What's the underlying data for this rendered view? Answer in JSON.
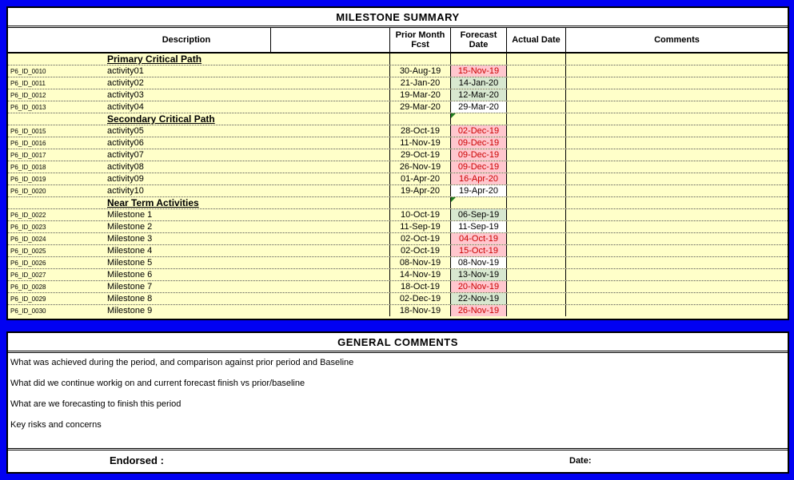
{
  "colors": {
    "frame_blue": "#0101F2",
    "row_yellow": "#FFFFC9",
    "slip_bg": "#FFC7CE",
    "slip_text": "#CC0000",
    "improve_bg": "#D8E8D0",
    "same_bg": "#FFFFFF",
    "error_indicator_green": "#1F7A1F"
  },
  "milestone_table": {
    "title": "MILESTONE SUMMARY",
    "columns": {
      "description": "Description",
      "blank": "",
      "prior_month": "Prior Month Fcst",
      "forecast": "Forecast Date",
      "actual": "Actual Date",
      "comments": "Comments"
    },
    "sections": [
      {
        "name": "Primary Critical Path",
        "has_error_indicator": false,
        "rows": [
          {
            "id": "P6_ID_0010",
            "description": "activity01",
            "prior": "30-Aug-19",
            "forecast": "15-Nov-19",
            "status": "slip",
            "actual": "",
            "comments": ""
          },
          {
            "id": "P6_ID_0011",
            "description": "activity02",
            "prior": "21-Jan-20",
            "forecast": "14-Jan-20",
            "status": "improve",
            "actual": "",
            "comments": ""
          },
          {
            "id": "P6_ID_0012",
            "description": "activity03",
            "prior": "19-Mar-20",
            "forecast": "12-Mar-20",
            "status": "improve",
            "actual": "",
            "comments": ""
          },
          {
            "id": "P6_ID_0013",
            "description": "activity04",
            "prior": "29-Mar-20",
            "forecast": "29-Mar-20",
            "status": "same",
            "actual": "",
            "comments": ""
          }
        ]
      },
      {
        "name": "Secondary Critical Path",
        "has_error_indicator": true,
        "rows": [
          {
            "id": "P6_ID_0015",
            "description": "activity05",
            "prior": "28-Oct-19",
            "forecast": "02-Dec-19",
            "status": "slip",
            "actual": "",
            "comments": ""
          },
          {
            "id": "P6_ID_0016",
            "description": "activity06",
            "prior": "11-Nov-19",
            "forecast": "09-Dec-19",
            "status": "slip",
            "actual": "",
            "comments": ""
          },
          {
            "id": "P6_ID_0017",
            "description": "activity07",
            "prior": "29-Oct-19",
            "forecast": "09-Dec-19",
            "status": "slip",
            "actual": "",
            "comments": ""
          },
          {
            "id": "P6_ID_0018",
            "description": "activity08",
            "prior": "26-Nov-19",
            "forecast": "09-Dec-19",
            "status": "slip",
            "actual": "",
            "comments": ""
          },
          {
            "id": "P6_ID_0019",
            "description": "activity09",
            "prior": "01-Apr-20",
            "forecast": "16-Apr-20",
            "status": "slip",
            "actual": "",
            "comments": ""
          },
          {
            "id": "P6_ID_0020",
            "description": "activity10",
            "prior": "19-Apr-20",
            "forecast": "19-Apr-20",
            "status": "same",
            "actual": "",
            "comments": ""
          }
        ]
      },
      {
        "name": "Near Term Activities",
        "has_error_indicator": true,
        "rows": [
          {
            "id": "P6_ID_0022",
            "description": "Milestone 1",
            "prior": "10-Oct-19",
            "forecast": "06-Sep-19",
            "status": "improve",
            "actual": "",
            "comments": ""
          },
          {
            "id": "P6_ID_0023",
            "description": "Milestone 2",
            "prior": "11-Sep-19",
            "forecast": "11-Sep-19",
            "status": "same",
            "actual": "",
            "comments": ""
          },
          {
            "id": "P6_ID_0024",
            "description": "Milestone 3",
            "prior": "02-Oct-19",
            "forecast": "04-Oct-19",
            "status": "slip",
            "actual": "",
            "comments": ""
          },
          {
            "id": "P6_ID_0025",
            "description": "Milestone 4",
            "prior": "02-Oct-19",
            "forecast": "15-Oct-19",
            "status": "slip",
            "actual": "",
            "comments": ""
          },
          {
            "id": "P6_ID_0026",
            "description": "Milestone 5",
            "prior": "08-Nov-19",
            "forecast": "08-Nov-19",
            "status": "same",
            "actual": "",
            "comments": ""
          },
          {
            "id": "P6_ID_0027",
            "description": "Milestone 6",
            "prior": "14-Nov-19",
            "forecast": "13-Nov-19",
            "status": "improve",
            "actual": "",
            "comments": ""
          },
          {
            "id": "P6_ID_0028",
            "description": "Milestone 7",
            "prior": "18-Oct-19",
            "forecast": "20-Nov-19",
            "status": "slip",
            "actual": "",
            "comments": ""
          },
          {
            "id": "P6_ID_0029",
            "description": "Milestone 8",
            "prior": "02-Dec-19",
            "forecast": "22-Nov-19",
            "status": "improve",
            "actual": "",
            "comments": ""
          },
          {
            "id": "P6_ID_0030",
            "description": "Milestone 9",
            "prior": "18-Nov-19",
            "forecast": "26-Nov-19",
            "status": "slip",
            "actual": "",
            "comments": ""
          }
        ]
      }
    ]
  },
  "general_comments": {
    "title": "GENERAL COMMENTS",
    "lines": [
      "What was achieved during the period, and comparison against prior period and Baseline",
      "What did we continue workig on and current forecast finish vs prior/baseline",
      "What are we forecasting to finish this period",
      "Key risks and concerns"
    ]
  },
  "footer": {
    "endorsed_label": "Endorsed :",
    "date_label": "Date:"
  }
}
